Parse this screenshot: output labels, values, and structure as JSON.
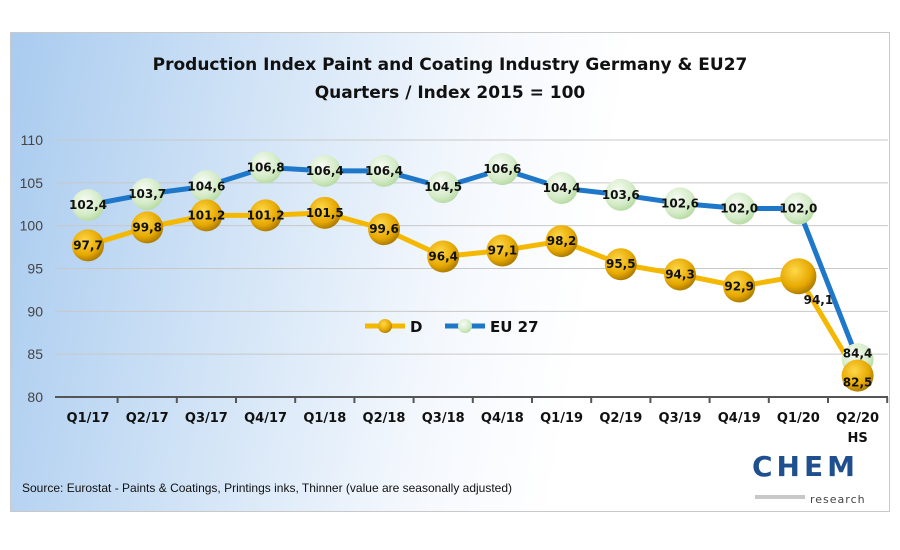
{
  "chart_data": {
    "type": "line",
    "title": "Production Index Paint and Coating Industry Germany & EU27",
    "subtitle": "Quarters / Index 2015 = 100",
    "categories": [
      "Q1/17",
      "Q2/17",
      "Q3/17",
      "Q4/17",
      "Q1/18",
      "Q2/18",
      "Q3/18",
      "Q4/18",
      "Q1/19",
      "Q2/19",
      "Q3/19",
      "Q4/19",
      "Q1/20",
      "Q2/20"
    ],
    "category_sublabels": [
      "",
      "",
      "",
      "",
      "",
      "",
      "",
      "",
      "",
      "",
      "",
      "",
      "",
      "HS"
    ],
    "yticks": [
      80,
      85,
      90,
      95,
      100,
      105,
      110
    ],
    "ylim": [
      80,
      110
    ],
    "grid": true,
    "legend_placement": "center",
    "series": [
      {
        "name": "D",
        "color": "#f5b800",
        "marker": "#d9a300",
        "values": [
          97.7,
          99.8,
          101.2,
          101.2,
          101.5,
          99.6,
          96.4,
          97.1,
          98.2,
          95.5,
          94.3,
          92.9,
          94.1,
          82.5
        ],
        "labels": [
          "97,7",
          "99,8",
          "101,2",
          "101,2",
          "101,5",
          "99,6",
          "96,4",
          "97,1",
          "98,2",
          "95,5",
          "94,3",
          "92,9",
          "94,1",
          "82,5"
        ]
      },
      {
        "name": "EU 27",
        "color": "#1f77c9",
        "marker": "#d4ebc8",
        "values": [
          102.4,
          103.7,
          104.6,
          106.8,
          106.4,
          106.4,
          104.5,
          106.6,
          104.4,
          103.6,
          102.6,
          102.0,
          102.0,
          84.4
        ],
        "labels": [
          "102,4",
          "103,7",
          "104,6",
          "106,8",
          "106,4",
          "106,4",
          "104,5",
          "106,6",
          "104,4",
          "103,6",
          "102,6",
          "102,0",
          "102,0",
          "84,4"
        ]
      }
    ],
    "source": "Source: Eurostat - Paints & Coatings, Printings inks, Thinner (value are seasonally adjusted)"
  },
  "logo": {
    "text": "CHEM",
    "sub": "research"
  }
}
